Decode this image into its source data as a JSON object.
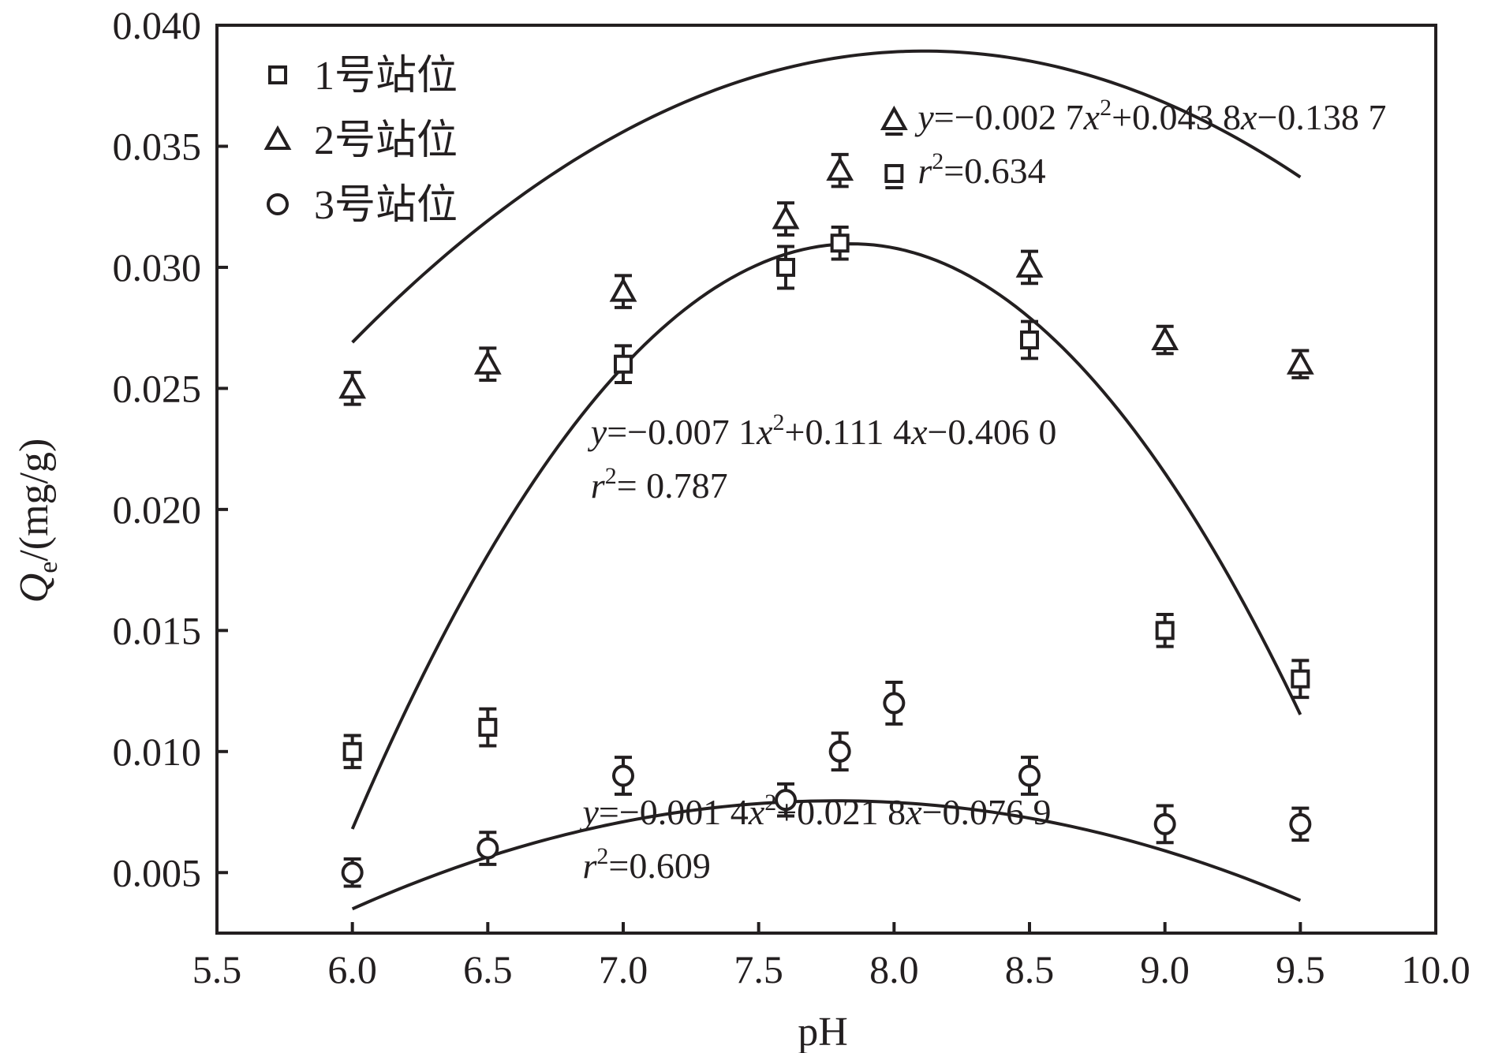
{
  "chart_data": {
    "type": "scatter",
    "xlabel": "pH",
    "ylabel": {
      "main": "Q",
      "sub": "e",
      "rest": "/(mg/g)"
    },
    "xlim": [
      5.5,
      10.0
    ],
    "ylim": [
      0.0025,
      0.04
    ],
    "x_ticks": [
      "5.5",
      "6.0",
      "6.5",
      "7.0",
      "7.5",
      "8.0",
      "8.5",
      "9.0",
      "9.5",
      "10.0"
    ],
    "y_ticks": [
      "0.005",
      "0.010",
      "0.015",
      "0.020",
      "0.025",
      "0.030",
      "0.035",
      "0.040"
    ],
    "grid": false,
    "legend": {
      "placement": "top-left",
      "entries": [
        "1号站位",
        "2号站位",
        "3号站位"
      ]
    },
    "series": [
      {
        "name": "1号站位",
        "marker": "square",
        "points": [
          {
            "x": 6.0,
            "y": 0.01,
            "err": 0.0004
          },
          {
            "x": 6.5,
            "y": 0.011,
            "err": 0.0005
          },
          {
            "x": 7.0,
            "y": 0.026,
            "err": 0.0005
          },
          {
            "x": 7.6,
            "y": 0.03,
            "err": 0.0006
          },
          {
            "x": 7.8,
            "y": 0.031,
            "err": 0.0004
          },
          {
            "x": 8.5,
            "y": 0.027,
            "err": 0.0005
          },
          {
            "x": 9.0,
            "y": 0.015,
            "err": 0.0004
          },
          {
            "x": 9.5,
            "y": 0.013,
            "err": 0.0005
          }
        ],
        "fit": {
          "a": -0.0071,
          "b": 0.1114,
          "c": -0.406
        }
      },
      {
        "name": "2号站位",
        "marker": "triangle",
        "points": [
          {
            "x": 6.0,
            "y": 0.025,
            "err": 0.0004
          },
          {
            "x": 6.5,
            "y": 0.026,
            "err": 0.0004
          },
          {
            "x": 7.0,
            "y": 0.029,
            "err": 0.0004
          },
          {
            "x": 7.6,
            "y": 0.032,
            "err": 0.0004
          },
          {
            "x": 7.8,
            "y": 0.034,
            "err": 0.0004
          },
          {
            "x": 8.5,
            "y": 0.03,
            "err": 0.0004
          },
          {
            "x": 9.0,
            "y": 0.027,
            "err": 0.0003
          },
          {
            "x": 9.5,
            "y": 0.026,
            "err": 0.0003
          }
        ],
        "fit": {
          "a": -0.0027,
          "b": 0.0438,
          "c": -0.1387
        }
      },
      {
        "name": "3号站位",
        "marker": "circle",
        "points": [
          {
            "x": 6.0,
            "y": 0.005,
            "err": 0.0003
          },
          {
            "x": 6.5,
            "y": 0.006,
            "err": 0.0004
          },
          {
            "x": 7.0,
            "y": 0.009,
            "err": 0.0005
          },
          {
            "x": 7.6,
            "y": 0.008,
            "err": 0.0004
          },
          {
            "x": 7.8,
            "y": 0.01,
            "err": 0.0005
          },
          {
            "x": 8.0,
            "y": 0.012,
            "err": 0.0006
          },
          {
            "x": 8.5,
            "y": 0.009,
            "err": 0.0005
          },
          {
            "x": 9.0,
            "y": 0.007,
            "err": 0.0005
          },
          {
            "x": 9.5,
            "y": 0.007,
            "err": 0.0004
          }
        ],
        "fit": {
          "a": -0.0014,
          "b": 0.0218,
          "c": -0.0769
        }
      }
    ],
    "annotations": [
      {
        "id": "fit2",
        "anchor_x": 8.0,
        "anchor_y": 0.0357,
        "markers": [
          "triangle",
          "square"
        ],
        "line1": {
          "y": "y",
          "eq1": "=−0.002 7",
          "x1": "x",
          "sup": "2",
          "eq2": "+0.043 8",
          "x2": "x",
          "eq3": "−0.138 7"
        },
        "line2": {
          "r": "r",
          "sup": "2",
          "eq": "=0.634"
        }
      },
      {
        "id": "fit1",
        "anchor_x": 6.88,
        "anchor_y": 0.0227,
        "line1": {
          "y": "y",
          "eq1": "=−0.007 1",
          "x1": "x",
          "sup": "2",
          "eq2": "+0.111 4",
          "x2": "x",
          "eq3": "−0.406 0"
        },
        "line2": {
          "r": "r",
          "sup": "2",
          "eq": "= 0.787"
        }
      },
      {
        "id": "fit3",
        "anchor_x": 6.85,
        "anchor_y": 0.007,
        "line1": {
          "y": "y",
          "eq1": "=−0.001 4",
          "x1": "x",
          "sup": "2",
          "eq2": "+0.021 8",
          "x2": "x",
          "eq3": "−0.076 9"
        },
        "line2": {
          "r": "r",
          "sup": "2",
          "eq": "=0.609"
        }
      }
    ]
  }
}
